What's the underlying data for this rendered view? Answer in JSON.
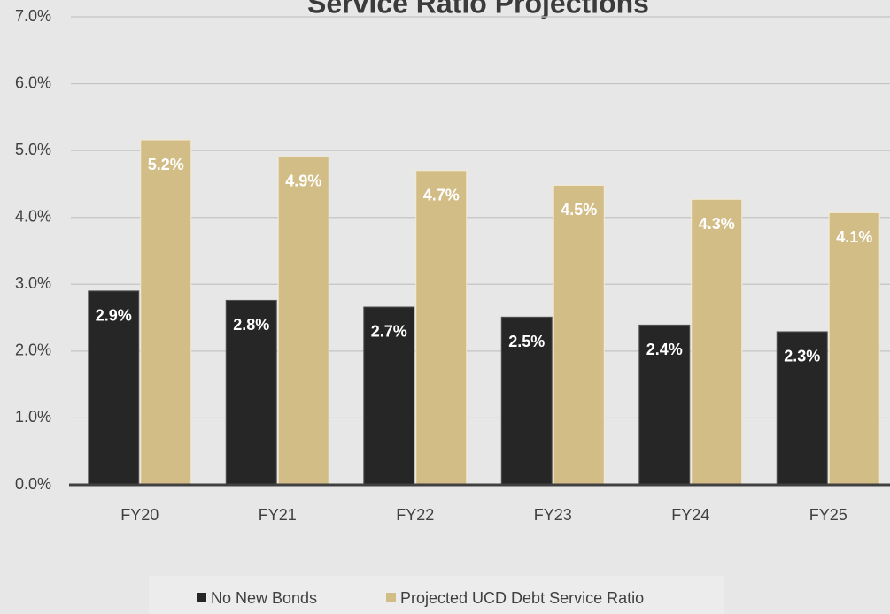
{
  "chart_data": {
    "type": "bar",
    "title": "Service Ratio Projections",
    "categories": [
      "FY20",
      "FY21",
      "FY22",
      "FY23",
      "FY24",
      "FY25"
    ],
    "series": [
      {
        "name": "No New Bonds",
        "color": "#262626",
        "values": [
          2.9,
          2.76,
          2.66,
          2.51,
          2.39,
          2.29
        ],
        "value_labels": [
          "2.9%",
          "2.8%",
          "2.7%",
          "2.5%",
          "2.4%",
          "2.3%"
        ]
      },
      {
        "name": "Projected UCD Debt Service Ratio",
        "color": "#d3bd87",
        "values": [
          5.16,
          4.91,
          4.7,
          4.48,
          4.27,
          4.07
        ],
        "value_labels": [
          "5.2%",
          "4.9%",
          "4.7%",
          "4.5%",
          "4.3%",
          "4.1%"
        ]
      }
    ],
    "ylim": [
      0,
      7
    ],
    "yticks": [
      {
        "value": 0,
        "label": "0.0%"
      },
      {
        "value": 1,
        "label": "1.0%"
      },
      {
        "value": 2,
        "label": "2.0%"
      },
      {
        "value": 3,
        "label": "3.0%"
      },
      {
        "value": 4,
        "label": "4.0%"
      },
      {
        "value": 5,
        "label": "5.0%"
      },
      {
        "value": 6,
        "label": "6.0%"
      },
      {
        "value": 7,
        "label": "7.0%"
      }
    ],
    "grid": true,
    "legend": "bottom"
  }
}
